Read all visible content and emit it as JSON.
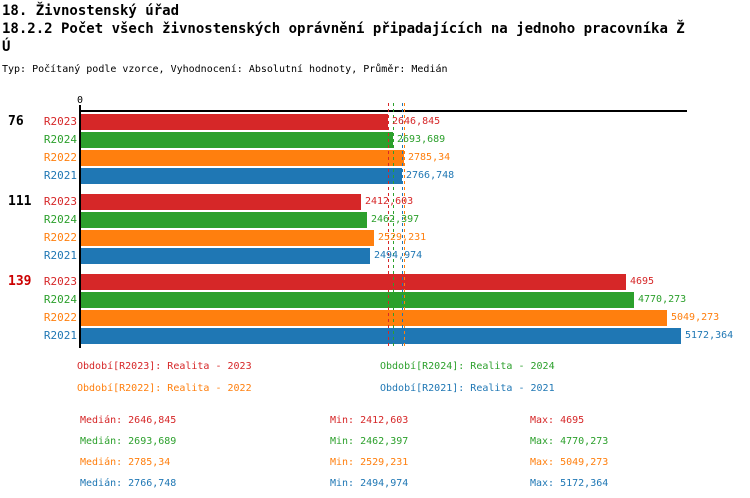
{
  "header": {
    "title": "18. Živnostenský úřad",
    "subtitle_lines": [
      "18.2.2 Počet všech živnostenských oprávnění připadajících na jednoho pracovníka Ž",
      "Ú"
    ],
    "meta": "Typ: Počítaný podle vzorce, Vyhodnocení: Absolutní hodnoty, Průměr: Medián"
  },
  "colors": {
    "R2023": "#d62728",
    "R2024": "#2ca02c",
    "R2022": "#ff7f0e",
    "R2021": "#1f77b4",
    "axis": "#000000",
    "highlight_group": "#cc0000",
    "normal_group": "#000000"
  },
  "chart_data": {
    "type": "bar",
    "orientation": "horizontal",
    "axis_zero_label": "0",
    "xlim": [
      0,
      5172.364
    ],
    "grid": false,
    "legend_position": "bottom",
    "series_order": [
      "R2023",
      "R2024",
      "R2022",
      "R2021"
    ],
    "groups": [
      {
        "label": "76",
        "highlighted": false,
        "bars": [
          {
            "series": "R2023",
            "value": 2646.845,
            "display": "2646,845"
          },
          {
            "series": "R2024",
            "value": 2693.689,
            "display": "2693,689"
          },
          {
            "series": "R2022",
            "value": 2785.34,
            "display": "2785,34"
          },
          {
            "series": "R2021",
            "value": 2766.748,
            "display": "2766,748"
          }
        ]
      },
      {
        "label": "111",
        "highlighted": false,
        "bars": [
          {
            "series": "R2023",
            "value": 2412.603,
            "display": "2412,603"
          },
          {
            "series": "R2024",
            "value": 2462.397,
            "display": "2462,397"
          },
          {
            "series": "R2022",
            "value": 2529.231,
            "display": "2529,231"
          },
          {
            "series": "R2021",
            "value": 2494.974,
            "display": "2494,974"
          }
        ]
      },
      {
        "label": "139",
        "highlighted": true,
        "bars": [
          {
            "series": "R2023",
            "value": 4695,
            "display": "4695"
          },
          {
            "series": "R2024",
            "value": 4770.273,
            "display": "4770,273"
          },
          {
            "series": "R2022",
            "value": 5049.273,
            "display": "5049,273"
          },
          {
            "series": "R2021",
            "value": 5172.364,
            "display": "5172,364"
          }
        ]
      }
    ],
    "median_lines": [
      {
        "series": "R2023",
        "value": 2646.845
      },
      {
        "series": "R2024",
        "value": 2693.689
      },
      {
        "series": "R2021",
        "value": 2766.748
      },
      {
        "series": "R2022",
        "value": 2785.34
      }
    ]
  },
  "legend": {
    "items": [
      {
        "series": "R2023",
        "label": "Období[R2023]: Realita - 2023"
      },
      {
        "series": "R2024",
        "label": "Období[R2024]: Realita - 2024"
      },
      {
        "series": "R2022",
        "label": "Období[R2022]: Realita - 2022"
      },
      {
        "series": "R2021",
        "label": "Období[R2021]: Realita - 2021"
      }
    ]
  },
  "stats": {
    "rows": [
      {
        "series": "R2023",
        "median": "Medián: 2646,845",
        "min": "Min: 2412,603",
        "max": "Max: 4695"
      },
      {
        "series": "R2024",
        "median": "Medián: 2693,689",
        "min": "Min: 2462,397",
        "max": "Max: 4770,273"
      },
      {
        "series": "R2022",
        "median": "Medián: 2785,34",
        "min": "Min: 2529,231",
        "max": "Max: 5049,273"
      },
      {
        "series": "R2021",
        "median": "Medián: 2766,748",
        "min": "Min: 2494,974",
        "max": "Max: 5172,364"
      }
    ]
  }
}
